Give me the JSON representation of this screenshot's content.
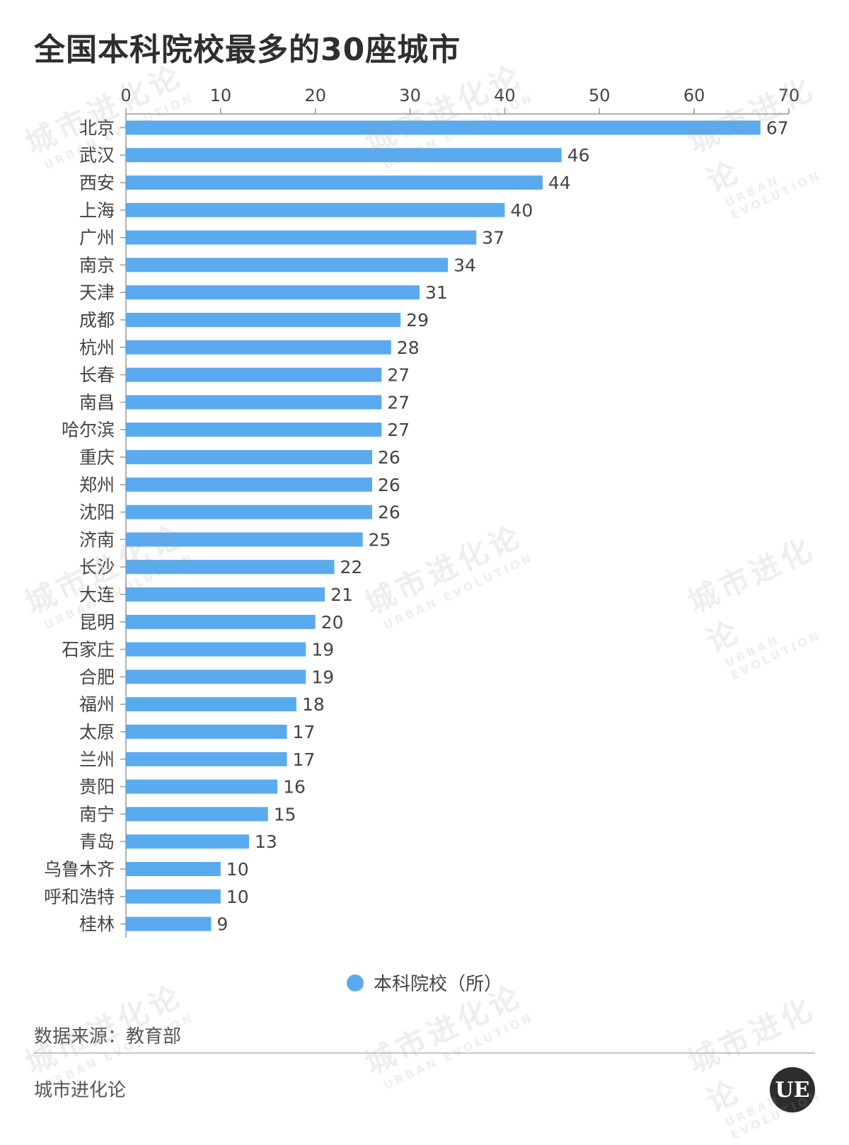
{
  "title": "全国本科院校最多的30座城市",
  "legend_label": "本科院校（所）",
  "source_text": "数据来源：教育部",
  "brand_text": "城市进化论",
  "logo_text": "UE",
  "watermark": {
    "cn": "城市进化论",
    "en": "URBAN EVOLUTION"
  },
  "colors": {
    "bar": "#5aaaf0",
    "axis": "#999999",
    "tick_text": "#444444"
  },
  "chart_data": {
    "type": "bar",
    "orientation": "horizontal",
    "categories": [
      "北京",
      "武汉",
      "西安",
      "上海",
      "广州",
      "南京",
      "天津",
      "成都",
      "杭州",
      "长春",
      "南昌",
      "哈尔滨",
      "重庆",
      "郑州",
      "沈阳",
      "济南",
      "长沙",
      "大连",
      "昆明",
      "石家庄",
      "合肥",
      "福州",
      "太原",
      "兰州",
      "贵阳",
      "南宁",
      "青岛",
      "乌鲁木齐",
      "呼和浩特",
      "桂林"
    ],
    "series": [
      {
        "name": "本科院校（所）",
        "values": [
          67,
          46,
          44,
          40,
          37,
          34,
          31,
          29,
          28,
          27,
          27,
          27,
          26,
          26,
          26,
          25,
          22,
          21,
          20,
          19,
          19,
          18,
          17,
          17,
          16,
          15,
          13,
          10,
          10,
          9
        ]
      }
    ],
    "xlim": [
      0,
      70
    ],
    "xticks": [
      0,
      10,
      20,
      30,
      40,
      50,
      60,
      70
    ],
    "legend_position": "bottom",
    "grid": false
  }
}
